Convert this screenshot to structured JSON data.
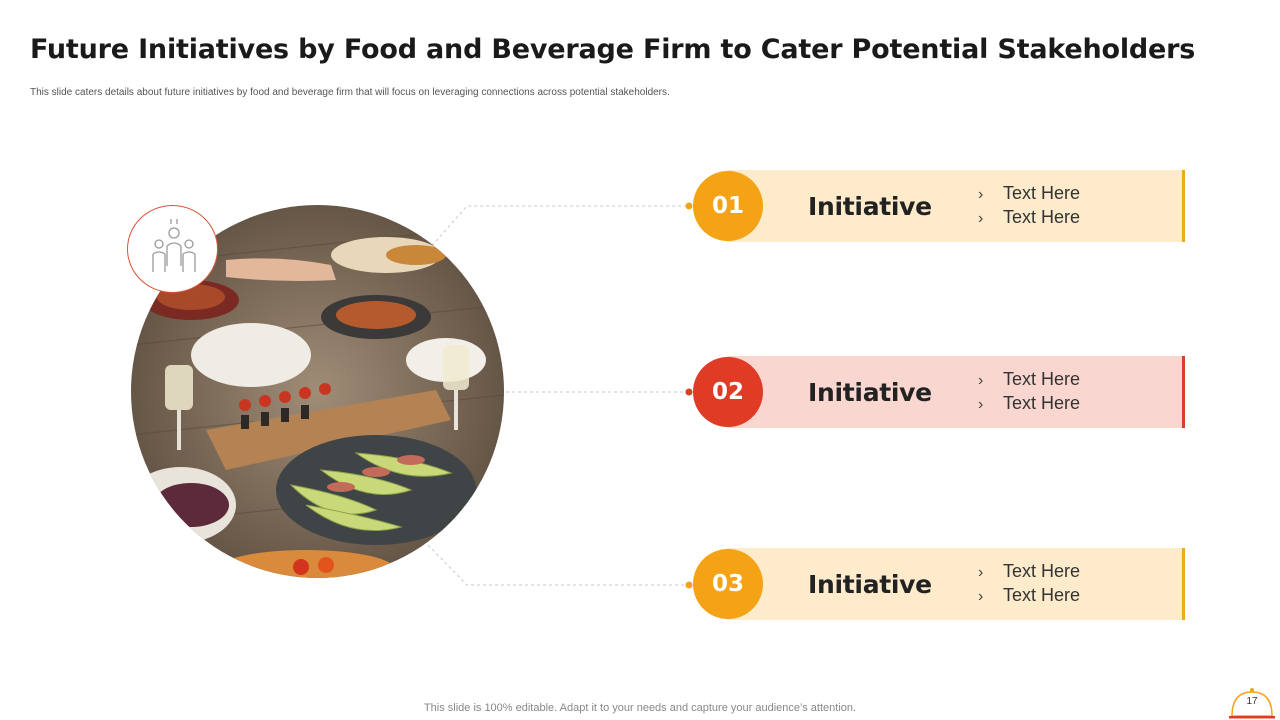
{
  "slide": {
    "title": "Future Initiatives by Food and Beverage Firm to Cater Potential Stakeholders",
    "subtitle": "This slide caters details about future initiatives by food and beverage firm that will focus on leveraging connections across potential stakeholders.",
    "footer": "This slide is 100% editable. Adapt it to your needs and capture your audience’s attention.",
    "page_number": "17"
  },
  "initiatives": [
    {
      "number": "01",
      "label": "Initiative",
      "points": [
        "Text Here",
        "Text Here"
      ]
    },
    {
      "number": "02",
      "label": "Initiative",
      "points": [
        "Text Here",
        "Text Here"
      ]
    },
    {
      "number": "03",
      "label": "Initiative",
      "points": [
        "Text Here",
        "Text Here"
      ]
    }
  ],
  "icons": {
    "bullet": "chevron-right-icon",
    "badge": "people-group-icon",
    "page": "food-cloche-icon"
  },
  "colors": {
    "accent_yellow": "#f5a316",
    "accent_red": "#e03b24",
    "band_yellow": "#fdebcb",
    "band_red": "#f9d6cf"
  }
}
